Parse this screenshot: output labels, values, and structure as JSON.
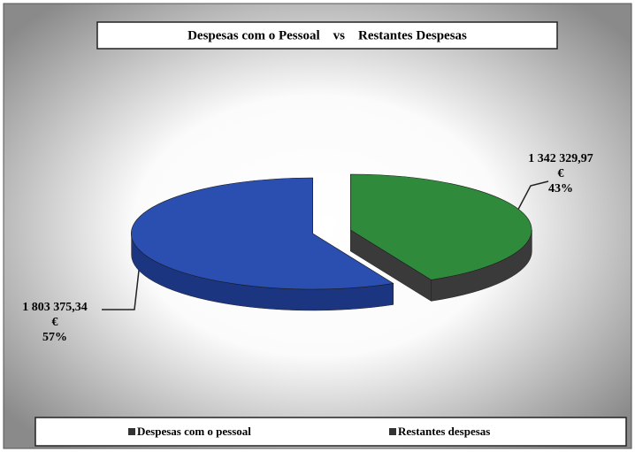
{
  "chart_data": {
    "type": "pie3d",
    "title": "Despesas com o Pessoal    vs    Restantes Despesas",
    "categories": [
      "Despesas com o pessoal",
      "Restantes despesas"
    ],
    "values": [
      1803375.34,
      1342329.97
    ],
    "value_labels": [
      "1 803 375,34",
      "1 342 329,97"
    ],
    "currency": "€",
    "percent_labels": [
      "57%",
      "43%"
    ],
    "colors": [
      "#2a4fb0",
      "#2f8a3c"
    ],
    "side_colors": [
      "#1b3580",
      "#3a3a3a"
    ],
    "legend": "bottom"
  }
}
